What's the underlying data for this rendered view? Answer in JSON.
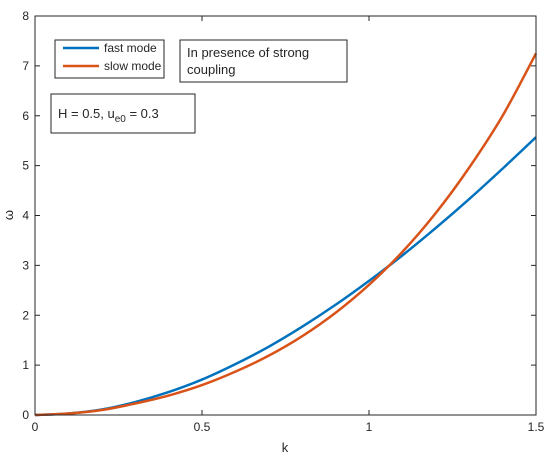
{
  "chart_data": {
    "type": "line",
    "xlabel": "k",
    "ylabel": "ω",
    "xlim": [
      0,
      1.5
    ],
    "ylim": [
      0,
      8
    ],
    "xticks": [
      "0",
      "0.5",
      "1",
      "1.5"
    ],
    "yticks": [
      "0",
      "1",
      "2",
      "3",
      "4",
      "5",
      "6",
      "7",
      "8"
    ],
    "grid": false,
    "legend_position": "top-left",
    "annotations": {
      "line1": "In presence of strong",
      "line2": "coupling",
      "params_prefix": "H = 0.5, u",
      "params_sub": "e0",
      "params_suffix": " = 0.3"
    },
    "series": [
      {
        "name": "fast mode",
        "color": "#0072BD",
        "x": [
          0,
          0.1,
          0.2,
          0.3,
          0.4,
          0.5,
          0.6,
          0.7,
          0.8,
          0.9,
          1.0,
          1.1,
          1.2,
          1.3,
          1.4,
          1.5
        ],
        "y": [
          0,
          0.03,
          0.11,
          0.26,
          0.46,
          0.71,
          1.02,
          1.37,
          1.77,
          2.21,
          2.69,
          3.2,
          3.75,
          4.33,
          4.94,
          5.57
        ]
      },
      {
        "name": "slow mode",
        "color": "#D95319",
        "x": [
          0,
          0.1,
          0.2,
          0.3,
          0.4,
          0.5,
          0.6,
          0.7,
          0.8,
          0.9,
          1.0,
          1.1,
          1.2,
          1.3,
          1.4,
          1.5
        ],
        "y": [
          0,
          0.03,
          0.1,
          0.23,
          0.39,
          0.6,
          0.87,
          1.19,
          1.58,
          2.05,
          2.61,
          3.27,
          4.05,
          4.96,
          6.0,
          7.25
        ]
      }
    ]
  }
}
